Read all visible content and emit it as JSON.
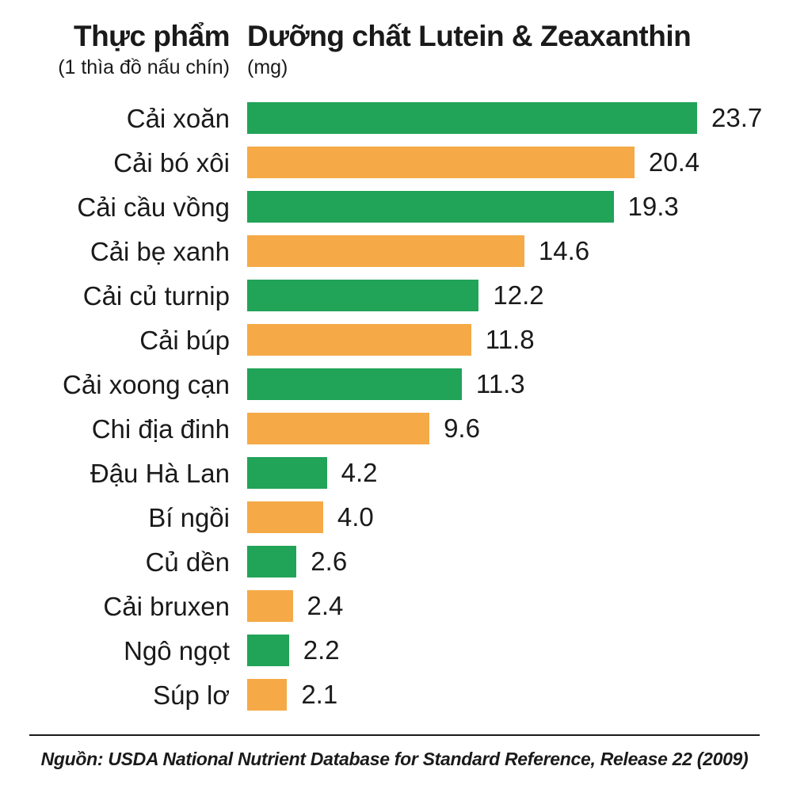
{
  "header": {
    "food_column_title": "Thực phẩm",
    "food_column_subtitle": "(1 thìa đồ nấu chín)",
    "nutrient_column_title": "Dưỡng chất Lutein & Zeaxanthin",
    "nutrient_column_subtitle": "(mg)"
  },
  "chart_data": {
    "type": "bar",
    "orientation": "horizontal",
    "title": "Dưỡng chất Lutein & Zeaxanthin (mg)",
    "xlabel": "mg",
    "xlim": [
      0,
      23.7
    ],
    "grid": false,
    "legend": "none",
    "categories": [
      "Cải xoăn",
      "Cải bó xôi",
      "Cải cầu vồng",
      "Cải bẹ xanh",
      "Cải củ turnip",
      "Cải búp",
      "Cải xoong cạn",
      "Chi địa đinh",
      "Đậu Hà Lan",
      "Bí ngồi",
      "Củ dền",
      "Cải bruxen",
      "Ngô ngọt",
      "Súp lơ"
    ],
    "values": [
      23.7,
      20.4,
      19.3,
      14.6,
      12.2,
      11.8,
      11.3,
      9.6,
      4.2,
      4.0,
      2.6,
      2.4,
      2.2,
      2.1
    ],
    "value_labels": [
      "23.7",
      "20.4",
      "19.3",
      "14.6",
      "12.2",
      "11.8",
      "11.3",
      "9.6",
      "4.2",
      "4.0",
      "2.6",
      "2.4",
      "2.2",
      "2.1"
    ],
    "bar_color_pattern": "alternating"
  },
  "footer": {
    "source_text": "Nguồn: USDA National Nutrient Database for Standard Reference, Release 22 (2009)"
  },
  "colors": {
    "green": "#21a358",
    "orange": "#f5aa47",
    "text": "#1a1a1a",
    "background": "#ffffff"
  }
}
